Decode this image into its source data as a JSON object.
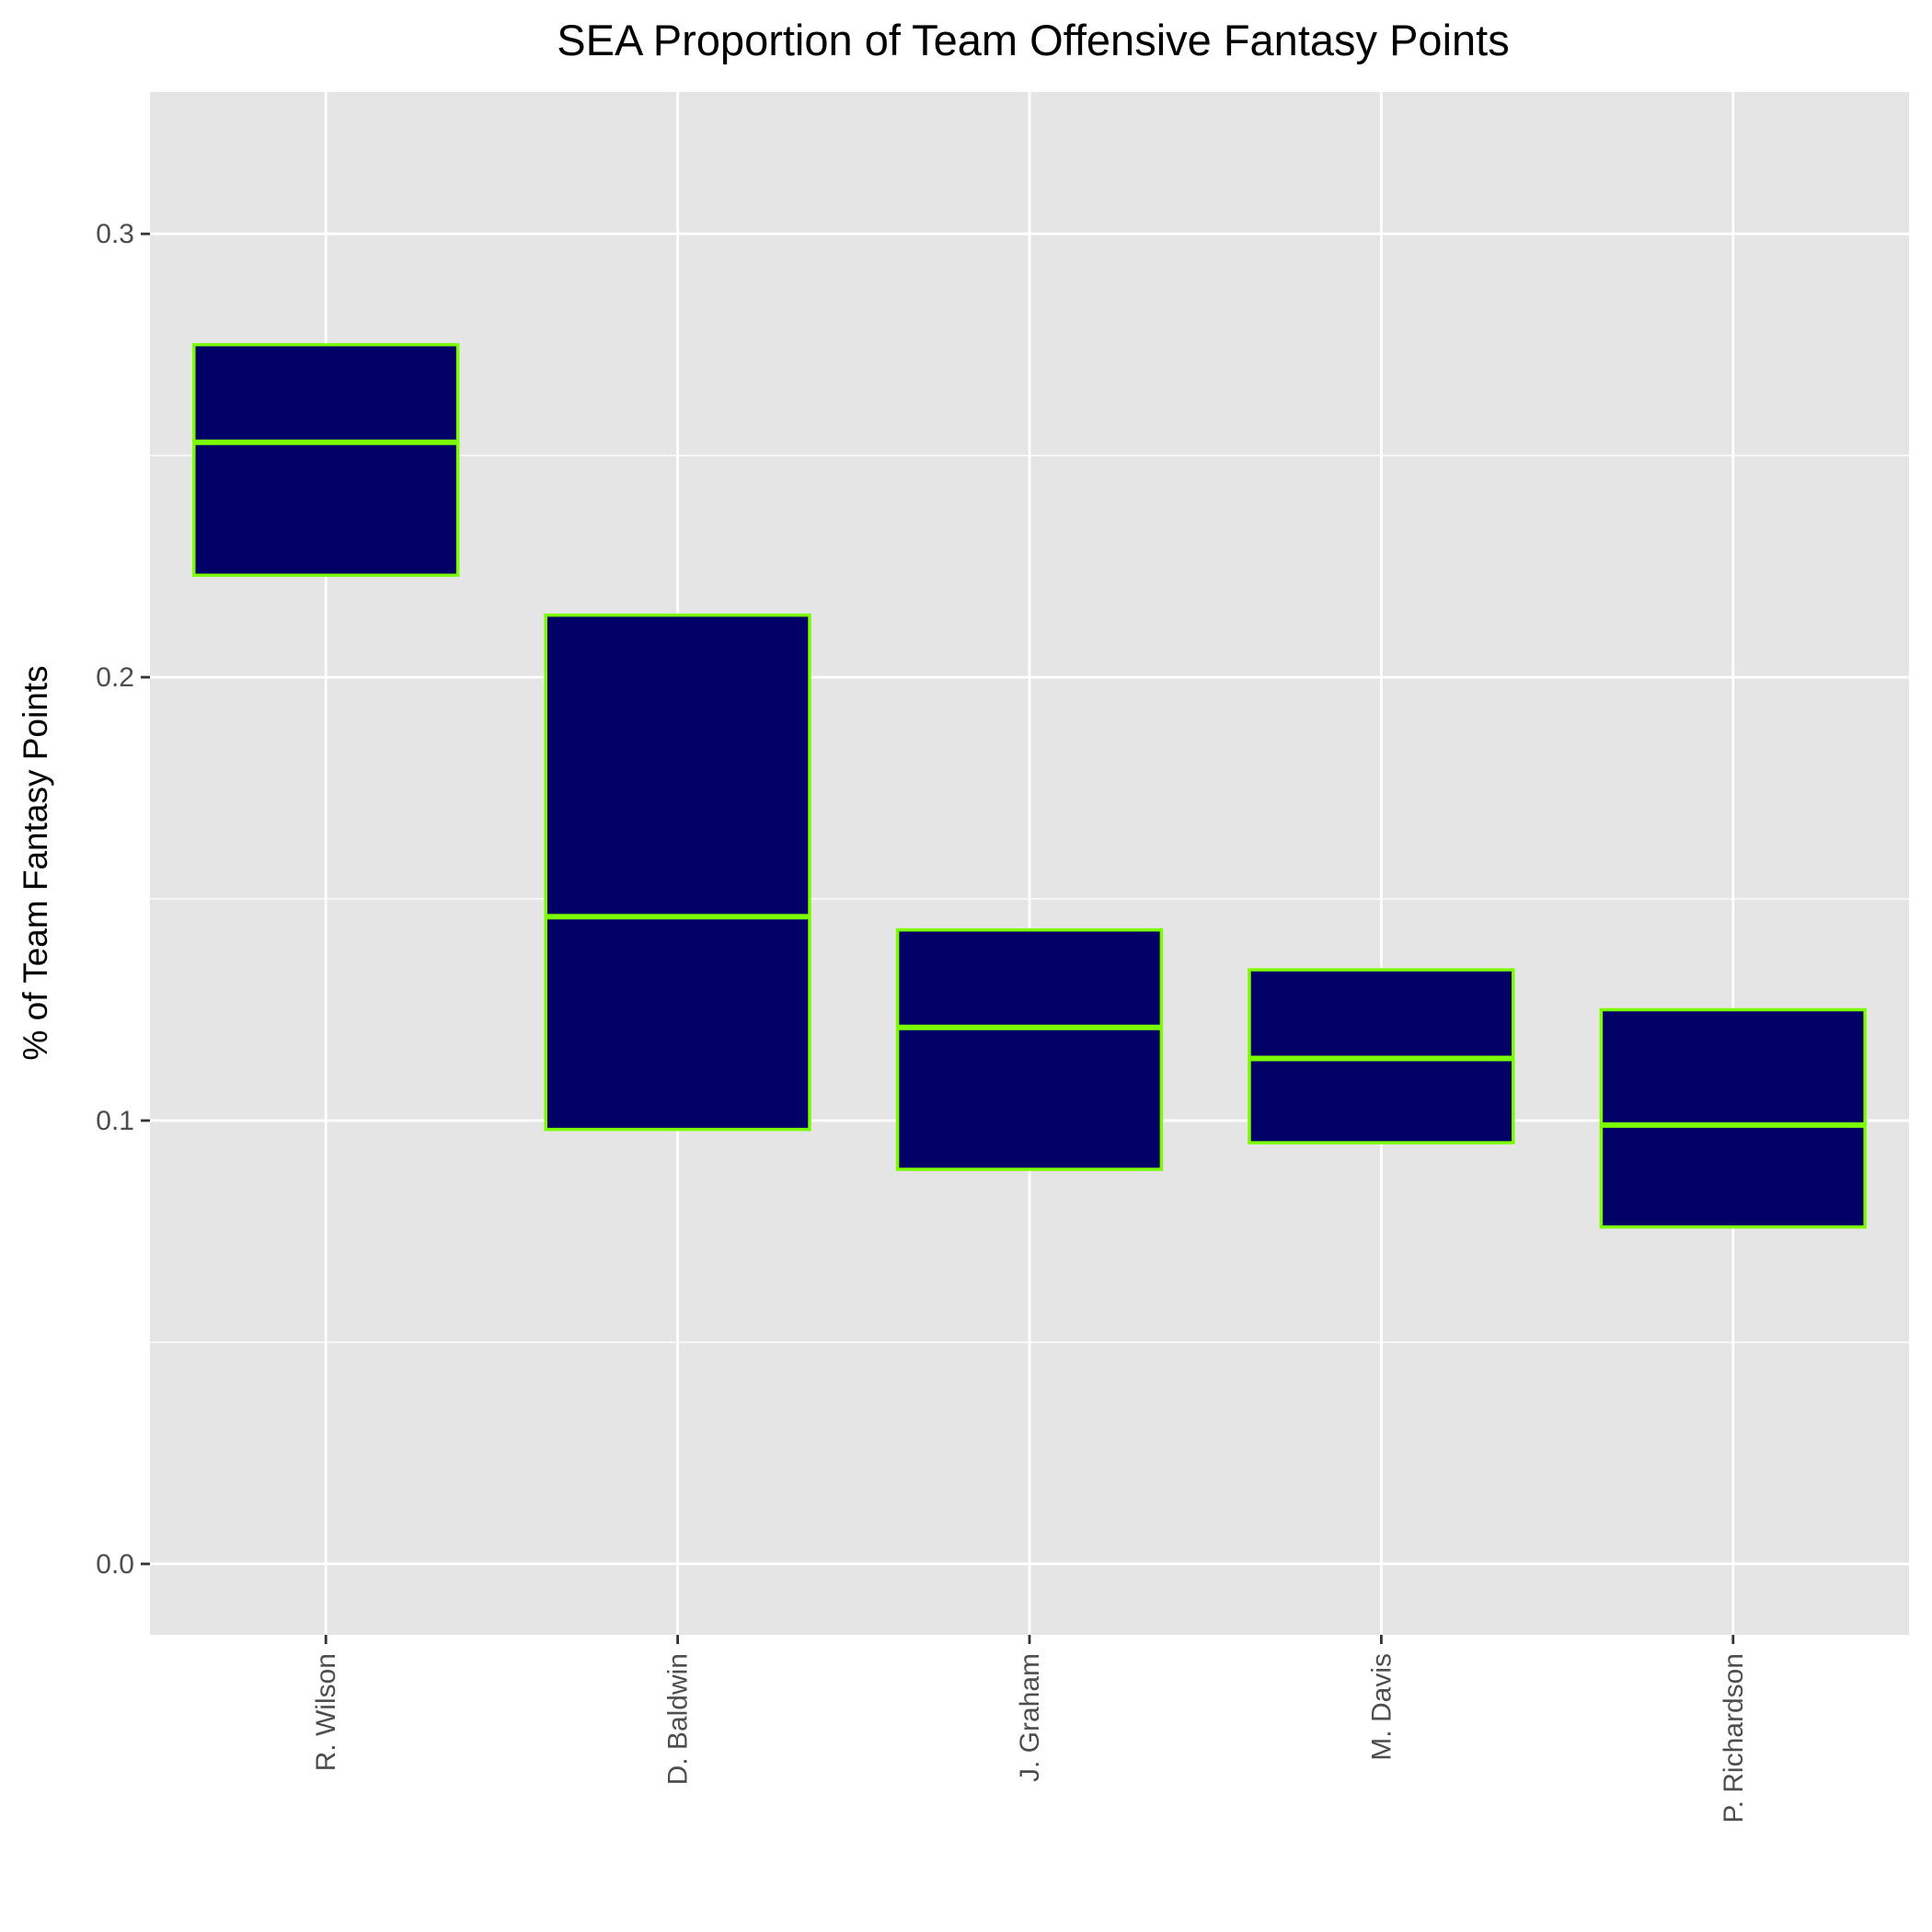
{
  "chart_data": {
    "type": "boxplot",
    "title": "SEA Proportion of Team Offensive Fantasy Points",
    "xlabel": "",
    "ylabel": "% of Team Fantasy Points",
    "categories": [
      "R. Wilson",
      "D. Baldwin",
      "J. Graham",
      "M. Davis",
      "P. Richardson"
    ],
    "boxes": [
      {
        "category": "R. Wilson",
        "q1": 0.223,
        "median": 0.253,
        "q3": 0.275
      },
      {
        "category": "D. Baldwin",
        "q1": 0.098,
        "median": 0.146,
        "q3": 0.214
      },
      {
        "category": "J. Graham",
        "q1": 0.089,
        "median": 0.121,
        "q3": 0.143
      },
      {
        "category": "M. Davis",
        "q1": 0.095,
        "median": 0.114,
        "q3": 0.134
      },
      {
        "category": "P. Richardson",
        "q1": 0.076,
        "median": 0.099,
        "q3": 0.125
      }
    ],
    "ylim": [
      -0.016,
      0.332
    ],
    "yticks": [
      0.0,
      0.1,
      0.2,
      0.3
    ],
    "ytick_labels": [
      "0.0",
      "0.1",
      "0.2",
      "0.3"
    ],
    "grid": true,
    "legend": "none",
    "colors": {
      "panel_background": "#e5e5e5",
      "grid": "#ffffff",
      "box_fill": "#000066",
      "box_outline": "#7cfc00"
    }
  }
}
